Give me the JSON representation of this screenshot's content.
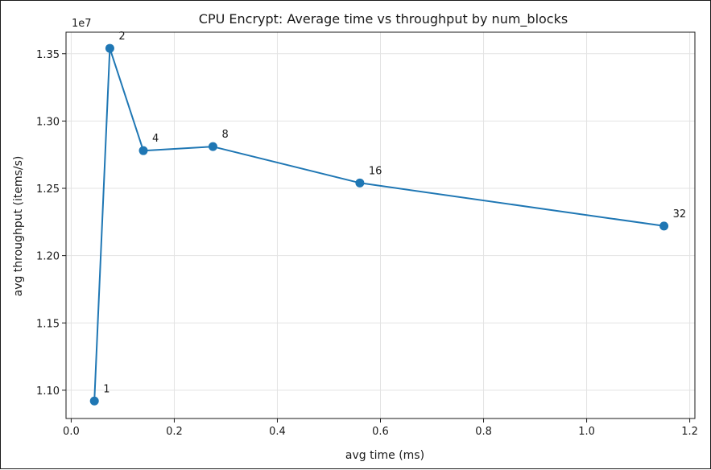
{
  "chart_data": {
    "type": "line",
    "title": "CPU Encrypt: Average time vs throughput by num_blocks",
    "xlabel": "avg time (ms)",
    "ylabel": "avg throughput (items/s)",
    "y_offset_label": "1e7",
    "xlim": [
      -0.01,
      1.21
    ],
    "ylim": [
      10790000,
      13660000
    ],
    "xticks": [
      0.0,
      0.2,
      0.4,
      0.6,
      0.8,
      1.0,
      1.2
    ],
    "xtick_labels": [
      "0.0",
      "0.2",
      "0.4",
      "0.6",
      "0.8",
      "1.0",
      "1.2"
    ],
    "yticks": [
      11000000,
      11500000,
      12000000,
      12500000,
      13000000,
      13500000
    ],
    "ytick_labels": [
      "1.10",
      "1.15",
      "1.20",
      "1.25",
      "1.30",
      "1.35"
    ],
    "grid": true,
    "series": [
      {
        "color": "#1f77b4",
        "points": [
          {
            "label": "1",
            "x": 0.045,
            "y": 10920000
          },
          {
            "label": "2",
            "x": 0.075,
            "y": 13540000
          },
          {
            "label": "4",
            "x": 0.14,
            "y": 12780000
          },
          {
            "label": "8",
            "x": 0.275,
            "y": 12810000
          },
          {
            "label": "16",
            "x": 0.56,
            "y": 12540000
          },
          {
            "label": "32",
            "x": 1.15,
            "y": 12220000
          }
        ]
      }
    ]
  }
}
